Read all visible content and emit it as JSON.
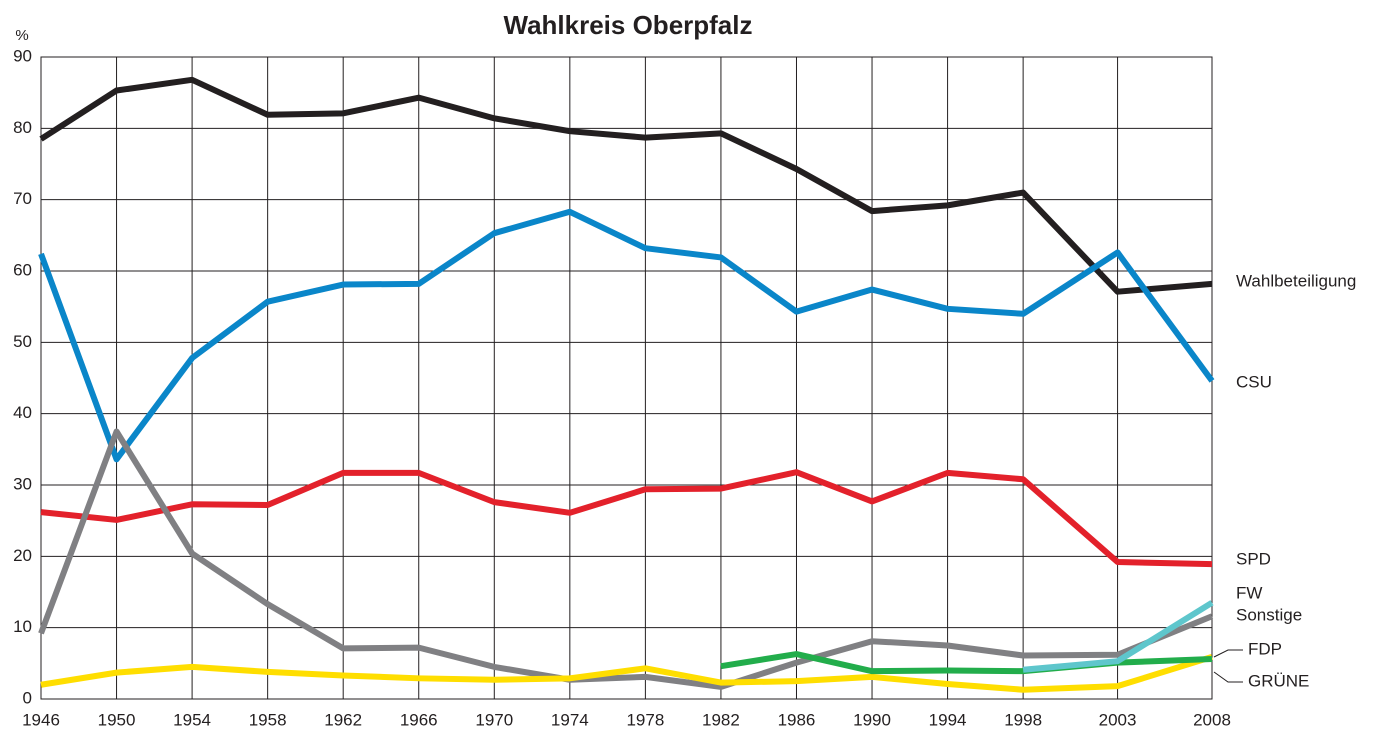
{
  "chart_data": {
    "type": "line",
    "title": "Wahlkreis Oberpfalz",
    "y_label": "%",
    "x": [
      1946,
      1950,
      1954,
      1958,
      1962,
      1966,
      1970,
      1974,
      1978,
      1982,
      1986,
      1990,
      1994,
      1998,
      2003,
      2008
    ],
    "xlim": [
      1946,
      2008
    ],
    "xticks": [
      1946,
      1950,
      1954,
      1958,
      1962,
      1966,
      1970,
      1974,
      1978,
      1982,
      1986,
      1990,
      1994,
      1998,
      2003,
      2008
    ],
    "ylim": [
      0,
      90
    ],
    "yticks": [
      0,
      10,
      20,
      30,
      40,
      50,
      60,
      70,
      80,
      90
    ],
    "grid": true,
    "series": [
      {
        "name": "Wahlbeteiligung",
        "color": "#231f20",
        "values": [
          78.5,
          85.3,
          86.8,
          81.9,
          82.1,
          84.3,
          81.4,
          79.6,
          78.7,
          79.3,
          74.3,
          68.4,
          69.2,
          71.0,
          57.1,
          58.2
        ]
      },
      {
        "name": "CSU",
        "color": "#0a86c9",
        "values": [
          62.4,
          33.6,
          47.8,
          55.7,
          58.1,
          58.2,
          65.3,
          68.3,
          63.2,
          61.9,
          54.3,
          57.4,
          54.7,
          54.0,
          62.6,
          44.6
        ]
      },
      {
        "name": "SPD",
        "color": "#e3212b",
        "values": [
          26.2,
          25.1,
          27.3,
          27.2,
          31.7,
          31.7,
          27.6,
          26.1,
          29.4,
          29.5,
          31.8,
          27.7,
          31.7,
          30.8,
          19.2,
          18.9
        ]
      },
      {
        "name": "Sonstige",
        "color": "#808083",
        "values": [
          9.2,
          37.5,
          20.4,
          13.3,
          7.1,
          7.2,
          4.5,
          2.7,
          3.1,
          1.7,
          5.1,
          8.1,
          7.5,
          6.1,
          6.2,
          11.6
        ]
      },
      {
        "name": "FDP",
        "color": "#ffde00",
        "values": [
          2.0,
          3.7,
          4.5,
          3.8,
          3.3,
          2.9,
          2.7,
          2.9,
          4.3,
          2.3,
          2.5,
          3.1,
          2.1,
          1.3,
          1.8,
          5.9
        ]
      },
      {
        "name": "GRÜNE",
        "color": "#22ad4b",
        "values": [
          null,
          null,
          null,
          null,
          null,
          null,
          null,
          null,
          null,
          4.6,
          6.3,
          3.9,
          4.0,
          3.9,
          5.1,
          5.6
        ]
      },
      {
        "name": "FW",
        "color": "#5ec6cc",
        "values": [
          null,
          null,
          null,
          null,
          null,
          null,
          null,
          null,
          null,
          null,
          null,
          null,
          null,
          4.1,
          5.3,
          13.5
        ]
      }
    ]
  }
}
